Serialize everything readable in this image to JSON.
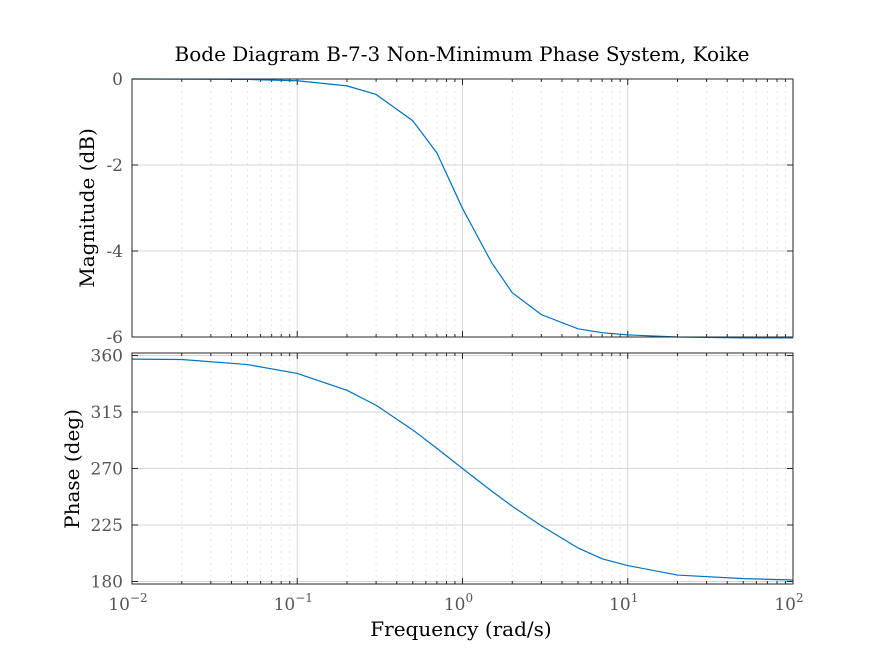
{
  "chart_data": [
    {
      "type": "line",
      "panel": "magnitude",
      "title": "Bode Diagram B-7-3 Non-Minimum Phase System, Koike",
      "ylabel": "Magnitude (dB)",
      "xscale": "log",
      "xlim": [
        0.01,
        100
      ],
      "ylim": [
        -6,
        0
      ],
      "yticks": [
        0,
        -2,
        -4,
        -6
      ],
      "grid": true,
      "color": "#0072BD",
      "series": [
        {
          "x": [
            0.01,
            0.02,
            0.05,
            0.1,
            0.2,
            0.3,
            0.5,
            0.7,
            1,
            1.5,
            2,
            3,
            5,
            7,
            10,
            20,
            50,
            100
          ],
          "values": [
            0.0,
            -0.002,
            -0.01,
            -0.04,
            -0.16,
            -0.36,
            -0.97,
            -1.72,
            -3.01,
            -4.27,
            -4.97,
            -5.48,
            -5.81,
            -5.9,
            -5.95,
            -6.0,
            -6.02,
            -6.02
          ]
        }
      ]
    },
    {
      "type": "line",
      "panel": "phase",
      "xlabel": "Frequency (rad/s)",
      "ylabel": "Phase (deg)",
      "xscale": "log",
      "xlim": [
        0.01,
        100
      ],
      "xticks": [
        {
          "base": "10",
          "exp": "−2"
        },
        {
          "base": "10",
          "exp": "−1"
        },
        {
          "base": "10",
          "exp": "0"
        },
        {
          "base": "10",
          "exp": "1"
        },
        {
          "base": "10",
          "exp": "2"
        }
      ],
      "ylim": [
        178,
        362
      ],
      "yticks": [
        360,
        315,
        270,
        225,
        180
      ],
      "grid": true,
      "color": "#0072BD",
      "series": [
        {
          "x": [
            0.01,
            0.02,
            0.05,
            0.1,
            0.2,
            0.3,
            0.5,
            0.7,
            1,
            1.5,
            2,
            3,
            5,
            7,
            10,
            20,
            50,
            100
          ],
          "values": [
            357.1,
            356.8,
            352.8,
            345.7,
            332.3,
            320.4,
            300.7,
            286.0,
            270.0,
            252.1,
            239.9,
            224.4,
            206.7,
            198.1,
            192.7,
            185.1,
            182.3,
            181.2
          ]
        }
      ]
    }
  ]
}
